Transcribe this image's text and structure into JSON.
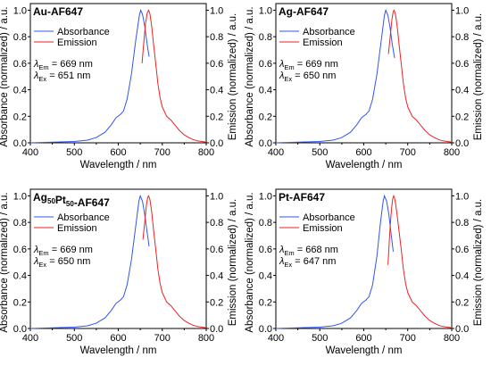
{
  "colors": {
    "absorbance": "#3355ee",
    "emission": "#ee2222",
    "axis": "#000000"
  },
  "panels": [
    {
      "title_parts": [
        {
          "t": "Au-AF647"
        }
      ],
      "em_value": "669 nm",
      "ex_value": "651 nm"
    },
    {
      "title_parts": [
        {
          "t": "Ag-AF647"
        }
      ],
      "em_value": "669 nm",
      "ex_value": "650 nm"
    },
    {
      "title_parts": [
        {
          "t": "Ag"
        },
        {
          "t": "50",
          "sub": true
        },
        {
          "t": "Pt"
        },
        {
          "t": "50",
          "sub": true
        },
        {
          "t": "-AF647"
        }
      ],
      "em_value": "669 nm",
      "ex_value": "650 nm"
    },
    {
      "title_parts": [
        {
          "t": "Pt-AF647"
        }
      ],
      "em_value": "668 nm",
      "ex_value": "647 nm"
    }
  ],
  "labels": {
    "lambda_symbol": "λ",
    "em_sub": "Em",
    "ex_sub": "Ex",
    "equals": " = "
  },
  "chart_data": [
    {
      "type": "line",
      "title": "Au-AF647",
      "xlabel": "Wavelength / nm",
      "ylabel_left": "Absorbance (normalized) / a.u.",
      "ylabel_right": "Emission (normalized) / a.u.",
      "xlim": [
        400,
        800
      ],
      "ylim": [
        0,
        1.05
      ],
      "xticks": [
        400,
        500,
        600,
        700,
        800
      ],
      "yticks": [
        "0.0",
        "0.2",
        "0.4",
        "0.6",
        "0.8",
        "1.0"
      ],
      "legend_position": "top-left",
      "series": [
        {
          "name": "Absorbance",
          "x": [
            400,
            450,
            500,
            530,
            550,
            570,
            585,
            595,
            605,
            612,
            620,
            630,
            640,
            648,
            651,
            655,
            660,
            665,
            670
          ],
          "y": [
            0.0,
            0.005,
            0.01,
            0.02,
            0.04,
            0.08,
            0.14,
            0.19,
            0.215,
            0.24,
            0.33,
            0.52,
            0.78,
            0.96,
            1.0,
            0.97,
            0.88,
            0.76,
            0.65
          ]
        },
        {
          "name": "Emission",
          "x": [
            654,
            658,
            662,
            666,
            669,
            672,
            676,
            680,
            685,
            690,
            695,
            700,
            710,
            720,
            730,
            740,
            750,
            760,
            770,
            780,
            790,
            800
          ],
          "y": [
            0.6,
            0.76,
            0.9,
            0.98,
            1.0,
            0.97,
            0.88,
            0.75,
            0.6,
            0.45,
            0.34,
            0.27,
            0.2,
            0.17,
            0.13,
            0.09,
            0.06,
            0.04,
            0.025,
            0.015,
            0.01,
            0.005
          ]
        }
      ]
    },
    {
      "type": "line",
      "title": "Ag-AF647",
      "xlabel": "Wavelength / nm",
      "ylabel_left": "Absorbance (normalized) / a.u.",
      "ylabel_right": "Emission (normalized) / a.u.",
      "xlim": [
        400,
        800
      ],
      "ylim": [
        0,
        1.05
      ],
      "xticks": [
        400,
        500,
        600,
        700,
        800
      ],
      "yticks": [
        "0.0",
        "0.2",
        "0.4",
        "0.6",
        "0.8",
        "1.0"
      ],
      "legend_position": "top-left",
      "series": [
        {
          "name": "Absorbance",
          "x": [
            400,
            450,
            500,
            530,
            550,
            570,
            585,
            595,
            605,
            612,
            620,
            630,
            640,
            647,
            650,
            655,
            660,
            665,
            670
          ],
          "y": [
            0.0,
            0.005,
            0.01,
            0.02,
            0.04,
            0.08,
            0.14,
            0.19,
            0.215,
            0.24,
            0.33,
            0.52,
            0.78,
            0.96,
            1.0,
            0.96,
            0.86,
            0.74,
            0.64
          ]
        },
        {
          "name": "Emission",
          "x": [
            656,
            660,
            664,
            667,
            669,
            672,
            676,
            680,
            685,
            690,
            695,
            700,
            710,
            720,
            730,
            740,
            750,
            760,
            770,
            780,
            790,
            800
          ],
          "y": [
            0.67,
            0.8,
            0.93,
            0.99,
            1.0,
            0.97,
            0.88,
            0.75,
            0.6,
            0.45,
            0.34,
            0.27,
            0.2,
            0.17,
            0.13,
            0.09,
            0.06,
            0.04,
            0.025,
            0.015,
            0.01,
            0.005
          ]
        }
      ]
    },
    {
      "type": "line",
      "title": "Ag50Pt50-AF647",
      "xlabel": "Wavelength / nm",
      "ylabel_left": "Absorbance (normalized) / a.u.",
      "ylabel_right": "Emission (normalized) / a.u.",
      "xlim": [
        400,
        800
      ],
      "ylim": [
        0,
        1.05
      ],
      "xticks": [
        400,
        500,
        600,
        700,
        800
      ],
      "yticks": [
        "0.0",
        "0.2",
        "0.4",
        "0.6",
        "0.8",
        "1.0"
      ],
      "legend_position": "top-left",
      "series": [
        {
          "name": "Absorbance",
          "x": [
            400,
            450,
            500,
            530,
            550,
            570,
            585,
            595,
            605,
            612,
            620,
            630,
            640,
            647,
            650,
            655,
            660,
            665,
            670
          ],
          "y": [
            0.0,
            0.005,
            0.01,
            0.02,
            0.04,
            0.08,
            0.14,
            0.19,
            0.215,
            0.24,
            0.33,
            0.52,
            0.78,
            0.96,
            1.0,
            0.96,
            0.86,
            0.74,
            0.62
          ]
        },
        {
          "name": "Emission",
          "x": [
            656,
            660,
            664,
            667,
            669,
            672,
            676,
            680,
            685,
            690,
            695,
            700,
            710,
            720,
            730,
            740,
            750,
            760,
            770,
            780,
            790,
            800
          ],
          "y": [
            0.67,
            0.8,
            0.93,
            0.99,
            1.0,
            0.97,
            0.88,
            0.75,
            0.6,
            0.45,
            0.34,
            0.27,
            0.2,
            0.17,
            0.13,
            0.09,
            0.06,
            0.04,
            0.025,
            0.015,
            0.01,
            0.005
          ]
        }
      ]
    },
    {
      "type": "line",
      "title": "Pt-AF647",
      "xlabel": "Wavelength / nm",
      "ylabel_left": "Absorbance (normalized) / a.u.",
      "ylabel_right": "Emission (normalized) / a.u.",
      "xlim": [
        400,
        800
      ],
      "ylim": [
        0,
        1.05
      ],
      "xticks": [
        400,
        500,
        600,
        700,
        800
      ],
      "yticks": [
        "0.0",
        "0.2",
        "0.4",
        "0.6",
        "0.8",
        "1.0"
      ],
      "legend_position": "top-left",
      "series": [
        {
          "name": "Absorbance",
          "x": [
            400,
            450,
            500,
            530,
            550,
            570,
            585,
            595,
            605,
            612,
            620,
            630,
            638,
            644,
            647,
            652,
            657,
            662,
            667
          ],
          "y": [
            0.0,
            0.005,
            0.01,
            0.02,
            0.04,
            0.08,
            0.14,
            0.19,
            0.215,
            0.24,
            0.33,
            0.55,
            0.8,
            0.96,
            1.0,
            0.96,
            0.86,
            0.72,
            0.58
          ]
        },
        {
          "name": "Emission",
          "x": [
            655,
            659,
            663,
            666,
            668,
            671,
            675,
            680,
            685,
            690,
            695,
            700,
            710,
            720,
            730,
            740,
            750,
            760,
            770,
            780,
            790,
            800
          ],
          "y": [
            0.48,
            0.72,
            0.9,
            0.98,
            1.0,
            0.97,
            0.88,
            0.74,
            0.6,
            0.45,
            0.34,
            0.27,
            0.2,
            0.17,
            0.13,
            0.09,
            0.06,
            0.04,
            0.025,
            0.015,
            0.01,
            0.005
          ]
        }
      ]
    }
  ]
}
